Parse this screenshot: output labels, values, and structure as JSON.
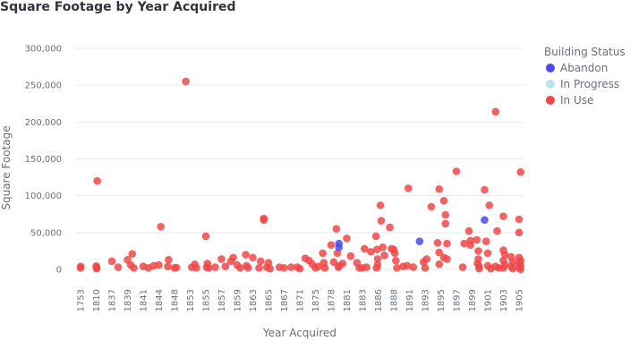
{
  "chart_data": {
    "type": "scatter",
    "title": "Square Footage by Year Acquired",
    "xlabel": "Year Acquired",
    "ylabel": "Square Footage",
    "ylim": [
      0,
      300000
    ],
    "y_ticks": [
      0,
      50000,
      100000,
      150000,
      200000,
      250000,
      300000
    ],
    "y_tick_labels": [
      "0",
      "50,000",
      "100,000",
      "150,000",
      "200,000",
      "250,000",
      "300,000"
    ],
    "categories": [
      "1753",
      "1810",
      "1837",
      "1839",
      "1841",
      "1844",
      "1848",
      "1853",
      "1855",
      "1857",
      "1859",
      "1863",
      "1865",
      "1867",
      "1871",
      "1875",
      "1878",
      "1881",
      "1883",
      "1886",
      "1888",
      "1891",
      "1893",
      "1895",
      "1897",
      "1899",
      "1901",
      "1903",
      "1905"
    ],
    "grid": true,
    "legend": {
      "title": "Building Status",
      "placement": "right",
      "entries": [
        {
          "name": "Abandon",
          "color": "#4a4af0"
        },
        {
          "name": "In Progress",
          "color": "#b8e4ea"
        },
        {
          "name": "In Use",
          "color": "#f04848"
        }
      ]
    },
    "series": [
      {
        "name": "Abandon",
        "points": [
          {
            "x": 1879.5,
            "y": 30000
          },
          {
            "x": 1879.5,
            "y": 35000
          },
          {
            "x": 1892.3,
            "y": 38000
          },
          {
            "x": 1900.6,
            "y": 67000
          }
        ]
      },
      {
        "name": "In Progress",
        "points": []
      },
      {
        "name": "In Use",
        "points": [
          {
            "x": 1753.0,
            "y": 2000
          },
          {
            "x": 1753.8,
            "y": 4000
          },
          {
            "x": 1810.0,
            "y": 4500
          },
          {
            "x": 1810.8,
            "y": 1000
          },
          {
            "x": 1810.5,
            "y": 3000
          },
          {
            "x": 1811.8,
            "y": 120000
          },
          {
            "x": 1837.0,
            "y": 11000
          },
          {
            "x": 1837.8,
            "y": 3000
          },
          {
            "x": 1839.0,
            "y": 13000
          },
          {
            "x": 1839.6,
            "y": 21000
          },
          {
            "x": 1839.8,
            "y": 2000
          },
          {
            "x": 1839.4,
            "y": 6000
          },
          {
            "x": 1841.0,
            "y": 4000
          },
          {
            "x": 1842.0,
            "y": 2000
          },
          {
            "x": 1843.0,
            "y": 5000
          },
          {
            "x": 1844.0,
            "y": 6000
          },
          {
            "x": 1844.5,
            "y": 58000
          },
          {
            "x": 1846.3,
            "y": 4000
          },
          {
            "x": 1846.5,
            "y": 13000
          },
          {
            "x": 1848.0,
            "y": 2000
          },
          {
            "x": 1848.6,
            "y": 2500
          },
          {
            "x": 1851.6,
            "y": 255000
          },
          {
            "x": 1853.2,
            "y": 3000
          },
          {
            "x": 1853.6,
            "y": 7000
          },
          {
            "x": 1853.8,
            "y": 2000
          },
          {
            "x": 1855.0,
            "y": 45000
          },
          {
            "x": 1855.1,
            "y": 3000
          },
          {
            "x": 1855.2,
            "y": 8000
          },
          {
            "x": 1855.4,
            "y": 2000
          },
          {
            "x": 1856.2,
            "y": 3000
          },
          {
            "x": 1857.0,
            "y": 14000
          },
          {
            "x": 1857.5,
            "y": 4000
          },
          {
            "x": 1858.2,
            "y": 11000
          },
          {
            "x": 1858.5,
            "y": 16000
          },
          {
            "x": 1859.0,
            "y": 6000
          },
          {
            "x": 1859.8,
            "y": 2000
          },
          {
            "x": 1861.2,
            "y": 20000
          },
          {
            "x": 1861.8,
            "y": 2000
          },
          {
            "x": 1861.4,
            "y": 5000
          },
          {
            "x": 1863.0,
            "y": 16000
          },
          {
            "x": 1863.8,
            "y": 2000
          },
          {
            "x": 1864.0,
            "y": 11000
          },
          {
            "x": 1864.4,
            "y": 69000
          },
          {
            "x": 1864.4,
            "y": 67000
          },
          {
            "x": 1864.8,
            "y": 3000
          },
          {
            "x": 1865.0,
            "y": 9000
          },
          {
            "x": 1865.2,
            "y": 1000
          },
          {
            "x": 1866.4,
            "y": 3000
          },
          {
            "x": 1867.0,
            "y": 2000
          },
          {
            "x": 1868.8,
            "y": 3000
          },
          {
            "x": 1870.4,
            "y": 3000
          },
          {
            "x": 1871.0,
            "y": 1000
          },
          {
            "x": 1872.4,
            "y": 15000
          },
          {
            "x": 1873.4,
            "y": 12000
          },
          {
            "x": 1874.2,
            "y": 7000
          },
          {
            "x": 1875.0,
            "y": 2000
          },
          {
            "x": 1875.6,
            "y": 4000
          },
          {
            "x": 1876.4,
            "y": 22000
          },
          {
            "x": 1876.6,
            "y": 9000
          },
          {
            "x": 1876.8,
            "y": 2000
          },
          {
            "x": 1878.0,
            "y": 33000
          },
          {
            "x": 1878.5,
            "y": 10000
          },
          {
            "x": 1879.0,
            "y": 55000
          },
          {
            "x": 1879.2,
            "y": 22000
          },
          {
            "x": 1879.4,
            "y": 3000
          },
          {
            "x": 1879.6,
            "y": 5000
          },
          {
            "x": 1880.2,
            "y": 8000
          },
          {
            "x": 1881.0,
            "y": 42000
          },
          {
            "x": 1881.5,
            "y": 18000
          },
          {
            "x": 1882.3,
            "y": 9000
          },
          {
            "x": 1882.6,
            "y": 2000
          },
          {
            "x": 1883.0,
            "y": 2000
          },
          {
            "x": 1883.4,
            "y": 28000
          },
          {
            "x": 1883.8,
            "y": 3000
          },
          {
            "x": 1884.6,
            "y": 24000
          },
          {
            "x": 1885.6,
            "y": 45000
          },
          {
            "x": 1885.8,
            "y": 27000
          },
          {
            "x": 1885.9,
            "y": 14000
          },
          {
            "x": 1885.9,
            "y": 6000
          },
          {
            "x": 1885.7,
            "y": 2000
          },
          {
            "x": 1886.3,
            "y": 87000
          },
          {
            "x": 1886.4,
            "y": 66000
          },
          {
            "x": 1886.6,
            "y": 30000
          },
          {
            "x": 1886.8,
            "y": 19000
          },
          {
            "x": 1887.5,
            "y": 57000
          },
          {
            "x": 1887.7,
            "y": 28000
          },
          {
            "x": 1888.0,
            "y": 27000
          },
          {
            "x": 1888.2,
            "y": 22000
          },
          {
            "x": 1888.4,
            "y": 12000
          },
          {
            "x": 1888.6,
            "y": 2000
          },
          {
            "x": 1889.8,
            "y": 4000
          },
          {
            "x": 1890.8,
            "y": 110000
          },
          {
            "x": 1890.6,
            "y": 5000
          },
          {
            "x": 1891.5,
            "y": 3000
          },
          {
            "x": 1892.8,
            "y": 10000
          },
          {
            "x": 1893.0,
            "y": 2000
          },
          {
            "x": 1893.2,
            "y": 14000
          },
          {
            "x": 1893.8,
            "y": 85000
          },
          {
            "x": 1894.8,
            "y": 109000
          },
          {
            "x": 1894.6,
            "y": 36000
          },
          {
            "x": 1894.8,
            "y": 23000
          },
          {
            "x": 1894.8,
            "y": 7000
          },
          {
            "x": 1895.4,
            "y": 93000
          },
          {
            "x": 1895.6,
            "y": 74000
          },
          {
            "x": 1895.6,
            "y": 62000
          },
          {
            "x": 1895.8,
            "y": 35000
          },
          {
            "x": 1895.8,
            "y": 14000
          },
          {
            "x": 1895.4,
            "y": 16000
          },
          {
            "x": 1897.0,
            "y": 133000
          },
          {
            "x": 1897.8,
            "y": 3000
          },
          {
            "x": 1898.0,
            "y": 35000
          },
          {
            "x": 1898.6,
            "y": 52000
          },
          {
            "x": 1898.8,
            "y": 39000
          },
          {
            "x": 1898.8,
            "y": 33000
          },
          {
            "x": 1899.6,
            "y": 40000
          },
          {
            "x": 1899.8,
            "y": 25000
          },
          {
            "x": 1899.8,
            "y": 14000
          },
          {
            "x": 1899.7,
            "y": 8000
          },
          {
            "x": 1899.9,
            "y": 4000
          },
          {
            "x": 1899.9,
            "y": 1000
          },
          {
            "x": 1900.6,
            "y": 108000
          },
          {
            "x": 1900.8,
            "y": 38000
          },
          {
            "x": 1901.2,
            "y": 87000
          },
          {
            "x": 1901.0,
            "y": 22000
          },
          {
            "x": 1901.0,
            "y": 5000
          },
          {
            "x": 1901.4,
            "y": 1000
          },
          {
            "x": 1902.0,
            "y": 214000
          },
          {
            "x": 1902.2,
            "y": 52000
          },
          {
            "x": 1902.0,
            "y": 4000
          },
          {
            "x": 1902.4,
            "y": 2000
          },
          {
            "x": 1903.0,
            "y": 72000
          },
          {
            "x": 1903.0,
            "y": 26000
          },
          {
            "x": 1903.2,
            "y": 20000
          },
          {
            "x": 1903.0,
            "y": 12000
          },
          {
            "x": 1903.2,
            "y": 6000
          },
          {
            "x": 1903.0,
            "y": 2000
          },
          {
            "x": 1904.0,
            "y": 17000
          },
          {
            "x": 1904.2,
            "y": 10000
          },
          {
            "x": 1904.0,
            "y": 4000
          },
          {
            "x": 1904.2,
            "y": 1000
          },
          {
            "x": 1905.2,
            "y": 132000
          },
          {
            "x": 1905.0,
            "y": 68000
          },
          {
            "x": 1905.0,
            "y": 50000
          },
          {
            "x": 1905.0,
            "y": 16000
          },
          {
            "x": 1905.2,
            "y": 12000
          },
          {
            "x": 1905.0,
            "y": 8000
          },
          {
            "x": 1905.2,
            "y": 5000
          },
          {
            "x": 1905.0,
            "y": 2000
          },
          {
            "x": 1905.2,
            "y": 0
          }
        ]
      }
    ]
  }
}
